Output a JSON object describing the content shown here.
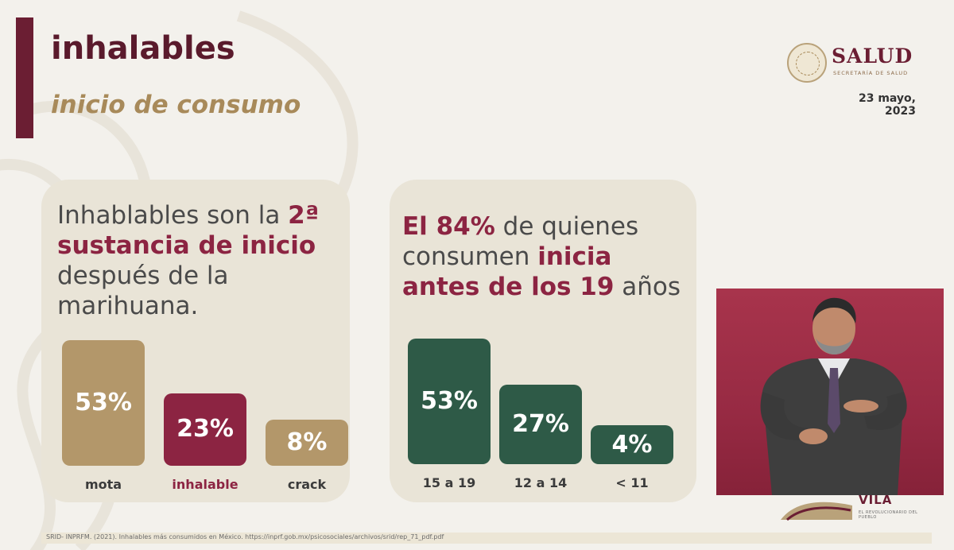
{
  "header": {
    "title": "inhalables",
    "subtitle": "inicio de consumo",
    "logo_text": "SALUD",
    "logo_subtext": "SECRETARÍA DE SALUD",
    "date": "23 mayo, 2023"
  },
  "left_card": {
    "text_1": "Inhablables son la ",
    "text_2": "2ª",
    "text_3": " ",
    "text_4": "sustancia de inicio",
    "text_5": " después de la marihuana.",
    "chart_data": {
      "type": "bar",
      "categories": [
        "mota",
        "inhalable",
        "crack"
      ],
      "values": [
        53,
        23,
        8
      ],
      "labels": [
        "53%",
        "23%",
        "8%"
      ],
      "colors": [
        "#b3976a",
        "#8c2442",
        "#b3976a"
      ],
      "category_colors": [
        "#3b3b3b",
        "#8c2442",
        "#3b3b3b"
      ]
    }
  },
  "right_card": {
    "text_1": "El 84%",
    "text_2": " de quienes consumen ",
    "text_3": "inicia antes de los 19",
    "text_4": " años",
    "chart_data": {
      "type": "bar",
      "categories": [
        "15 a 19",
        "12 a 14",
        "< 11"
      ],
      "values": [
        53,
        27,
        4
      ],
      "labels": [
        "53%",
        "27%",
        "4%"
      ],
      "colors": [
        "#2e5a47",
        "#2e5a47",
        "#2e5a47"
      ]
    }
  },
  "footer": {
    "source": "SRID- INPRFM. (2021). Inhalables más consumidos en México. https://inprf.gob.mx/psicosociales/archivos/srid/rep_71_pdf.pdf"
  },
  "bottom_logo": {
    "text": "VILA",
    "subtext": "EL REVOLUCIONARIO DEL PUEBLO"
  },
  "colors": {
    "accent": "#6b1e33",
    "gold": "#a88a5a",
    "green": "#2e5a47"
  }
}
